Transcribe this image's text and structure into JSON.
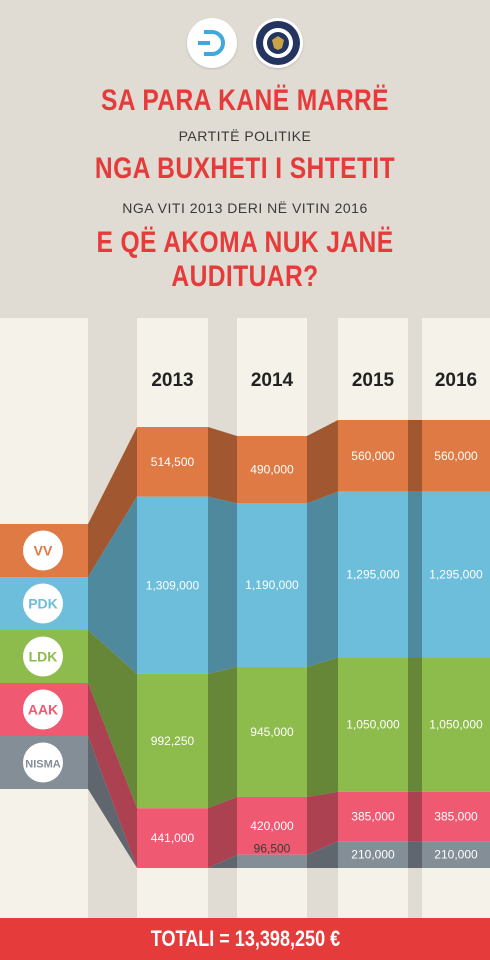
{
  "header": {
    "line1": "SA PARA KANË MARRË",
    "line2": "PARTITË POLITIKE",
    "line3": "NGA BUXHETI I SHTETIT",
    "line4": "NGA VITI 2013 DERI NË VITIN 2016",
    "line5": "E QË AKOMA NUK JANË AUDITUAR?"
  },
  "logos": {
    "left": "d-logo-icon",
    "right": "us-embassy-seal-icon"
  },
  "chart_data": {
    "type": "bar",
    "stacked": true,
    "categories": [
      "2013",
      "2014",
      "2015",
      "2016"
    ],
    "series": [
      {
        "name": "VV",
        "color": "#e07a44",
        "values": [
          514500,
          490000,
          560000,
          560000
        ],
        "labels": [
          "514,500",
          "490,000",
          "560,000",
          "560,000"
        ]
      },
      {
        "name": "PDK",
        "color": "#6cbedb",
        "values": [
          1309000,
          1190000,
          1295000,
          1295000
        ],
        "labels": [
          "1,309,000",
          "1,190,000",
          "1,295,000",
          "1,295,000"
        ]
      },
      {
        "name": "LDK",
        "color": "#8dbb4c",
        "values": [
          992250,
          945000,
          1050000,
          1050000
        ],
        "labels": [
          "992,250",
          "945,000",
          "1,050,000",
          "1,050,000"
        ]
      },
      {
        "name": "AAK",
        "color": "#ef5a72",
        "values": [
          441000,
          420000,
          385000,
          385000
        ],
        "labels": [
          "441,000",
          "420,000",
          "385,000",
          "385,000"
        ]
      },
      {
        "name": "NISMA",
        "color": "#848e97",
        "values": [
          0,
          96500,
          210000,
          210000
        ],
        "labels": [
          "",
          "96,500",
          "210,000",
          "210,000"
        ]
      }
    ]
  },
  "total": {
    "label": "TOTALI = 13,398,250 €"
  }
}
